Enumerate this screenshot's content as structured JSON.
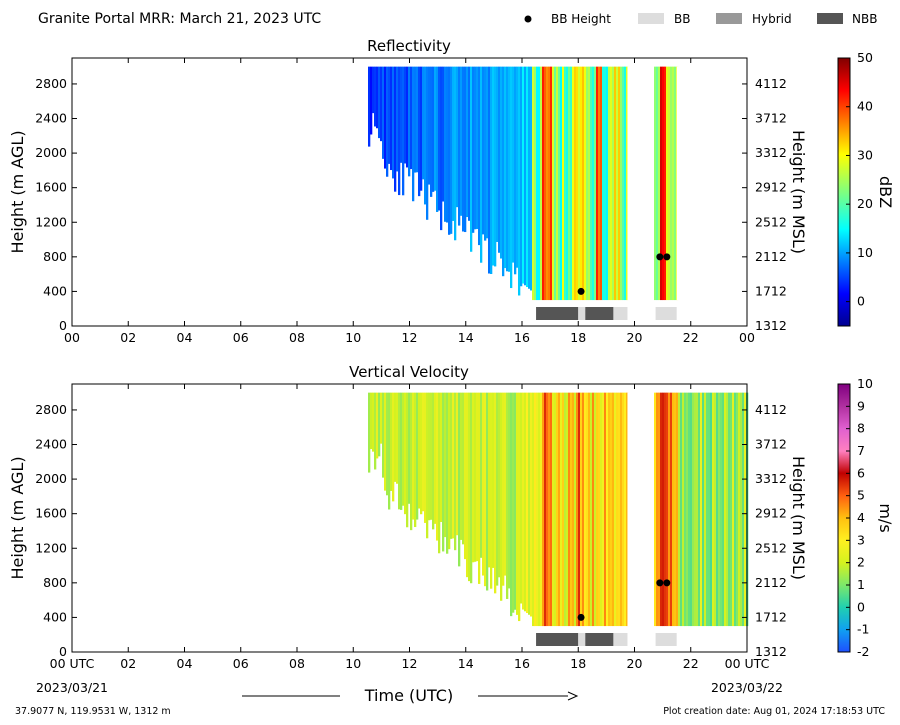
{
  "header": {
    "title": "Granite Portal MRR:  March 21, 2023 UTC",
    "legend": [
      {
        "label": "BB Height",
        "type": "dot",
        "color": "#000000"
      },
      {
        "label": "BB",
        "type": "swatch",
        "color": "#dddddd"
      },
      {
        "label": "Hybrid",
        "type": "swatch",
        "color": "#999999"
      },
      {
        "label": "NBB",
        "type": "swatch",
        "color": "#555555"
      }
    ]
  },
  "chart_data": [
    {
      "type": "heatmap",
      "title": "Reflectivity",
      "ylabel_left": "Height (m AGL)",
      "ylabel_right": "Height (m MSL)",
      "xlim": [
        0,
        24
      ],
      "ylim": [
        0,
        3100
      ],
      "x_ticks": [
        "00",
        "02",
        "04",
        "06",
        "08",
        "10",
        "12",
        "14",
        "16",
        "18",
        "20",
        "22",
        "00"
      ],
      "y_ticks_left": [
        0,
        400,
        800,
        1200,
        1600,
        2000,
        2400,
        2800
      ],
      "y_ticks_right": [
        "1312",
        "1712",
        "2112",
        "2512",
        "2912",
        "3312",
        "3712",
        "4112"
      ],
      "colorbar": {
        "label": "dBZ",
        "min": -5,
        "max": 50,
        "ticks": [
          "50",
          "40",
          "30",
          "20",
          "10",
          "0"
        ],
        "tick_values": [
          50,
          40,
          30,
          20,
          10,
          0
        ],
        "colormap": "jet"
      },
      "bb_heights": [
        {
          "x": 18.1,
          "y": 400
        },
        {
          "x": 20.9,
          "y": 800
        },
        {
          "x": 21.15,
          "y": 800
        }
      ],
      "bb_type_segments": [
        {
          "start": 16.5,
          "end": 18.0,
          "type": "NBB"
        },
        {
          "start": 18.0,
          "end": 18.25,
          "type": "BB"
        },
        {
          "start": 18.25,
          "end": 19.25,
          "type": "NBB"
        },
        {
          "start": 19.25,
          "end": 19.75,
          "type": "BB"
        },
        {
          "start": 20.75,
          "end": 21.5,
          "type": "BB"
        }
      ],
      "fill_gaps": [
        [
          19.75,
          20.65
        ],
        [
          21.5,
          24
        ]
      ]
    },
    {
      "type": "heatmap",
      "title": "Vertical Velocity",
      "ylabel_left": "Height (m AGL)",
      "ylabel_right": "Height (m MSL)",
      "xlabel": "Time (UTC)",
      "xlim": [
        0,
        24
      ],
      "ylim": [
        0,
        3100
      ],
      "x_ticks": [
        "00 UTC",
        "02",
        "04",
        "06",
        "08",
        "10",
        "12",
        "14",
        "16",
        "18",
        "20",
        "22",
        "00 UTC"
      ],
      "y_ticks_left": [
        0,
        400,
        800,
        1200,
        1600,
        2000,
        2400,
        2800
      ],
      "y_ticks_right": [
        "1312",
        "1712",
        "2112",
        "2512",
        "2912",
        "3312",
        "3712",
        "4112"
      ],
      "colorbar": {
        "label": "m/s",
        "min": -2,
        "max": 10,
        "ticks": [
          "10",
          "9",
          "8",
          "7",
          "6",
          "5",
          "4",
          "3",
          "2",
          "1",
          "0",
          "-1",
          "-2"
        ],
        "tick_values": [
          10,
          9,
          8,
          7,
          6,
          5,
          4,
          3,
          2,
          1,
          0,
          -1,
          -2
        ],
        "colormap": "velocity"
      },
      "bb_heights": [
        {
          "x": 18.1,
          "y": 400
        },
        {
          "x": 20.9,
          "y": 800
        },
        {
          "x": 21.15,
          "y": 800
        }
      ],
      "bb_type_segments": [
        {
          "start": 16.5,
          "end": 18.0,
          "type": "NBB"
        },
        {
          "start": 18.0,
          "end": 18.25,
          "type": "BB"
        },
        {
          "start": 18.25,
          "end": 19.25,
          "type": "NBB"
        },
        {
          "start": 19.25,
          "end": 19.75,
          "type": "BB"
        },
        {
          "start": 20.75,
          "end": 21.5,
          "type": "BB"
        }
      ],
      "fill_gaps": [
        [
          19.75,
          20.65
        ]
      ]
    }
  ],
  "date_start": "2023/03/21",
  "date_end": "2023/03/22",
  "footer": {
    "location": "37.9077 N, 119.9531 W, 1312 m",
    "created": "Plot creation date: Aug 01, 2024 17:18:53 UTC"
  }
}
